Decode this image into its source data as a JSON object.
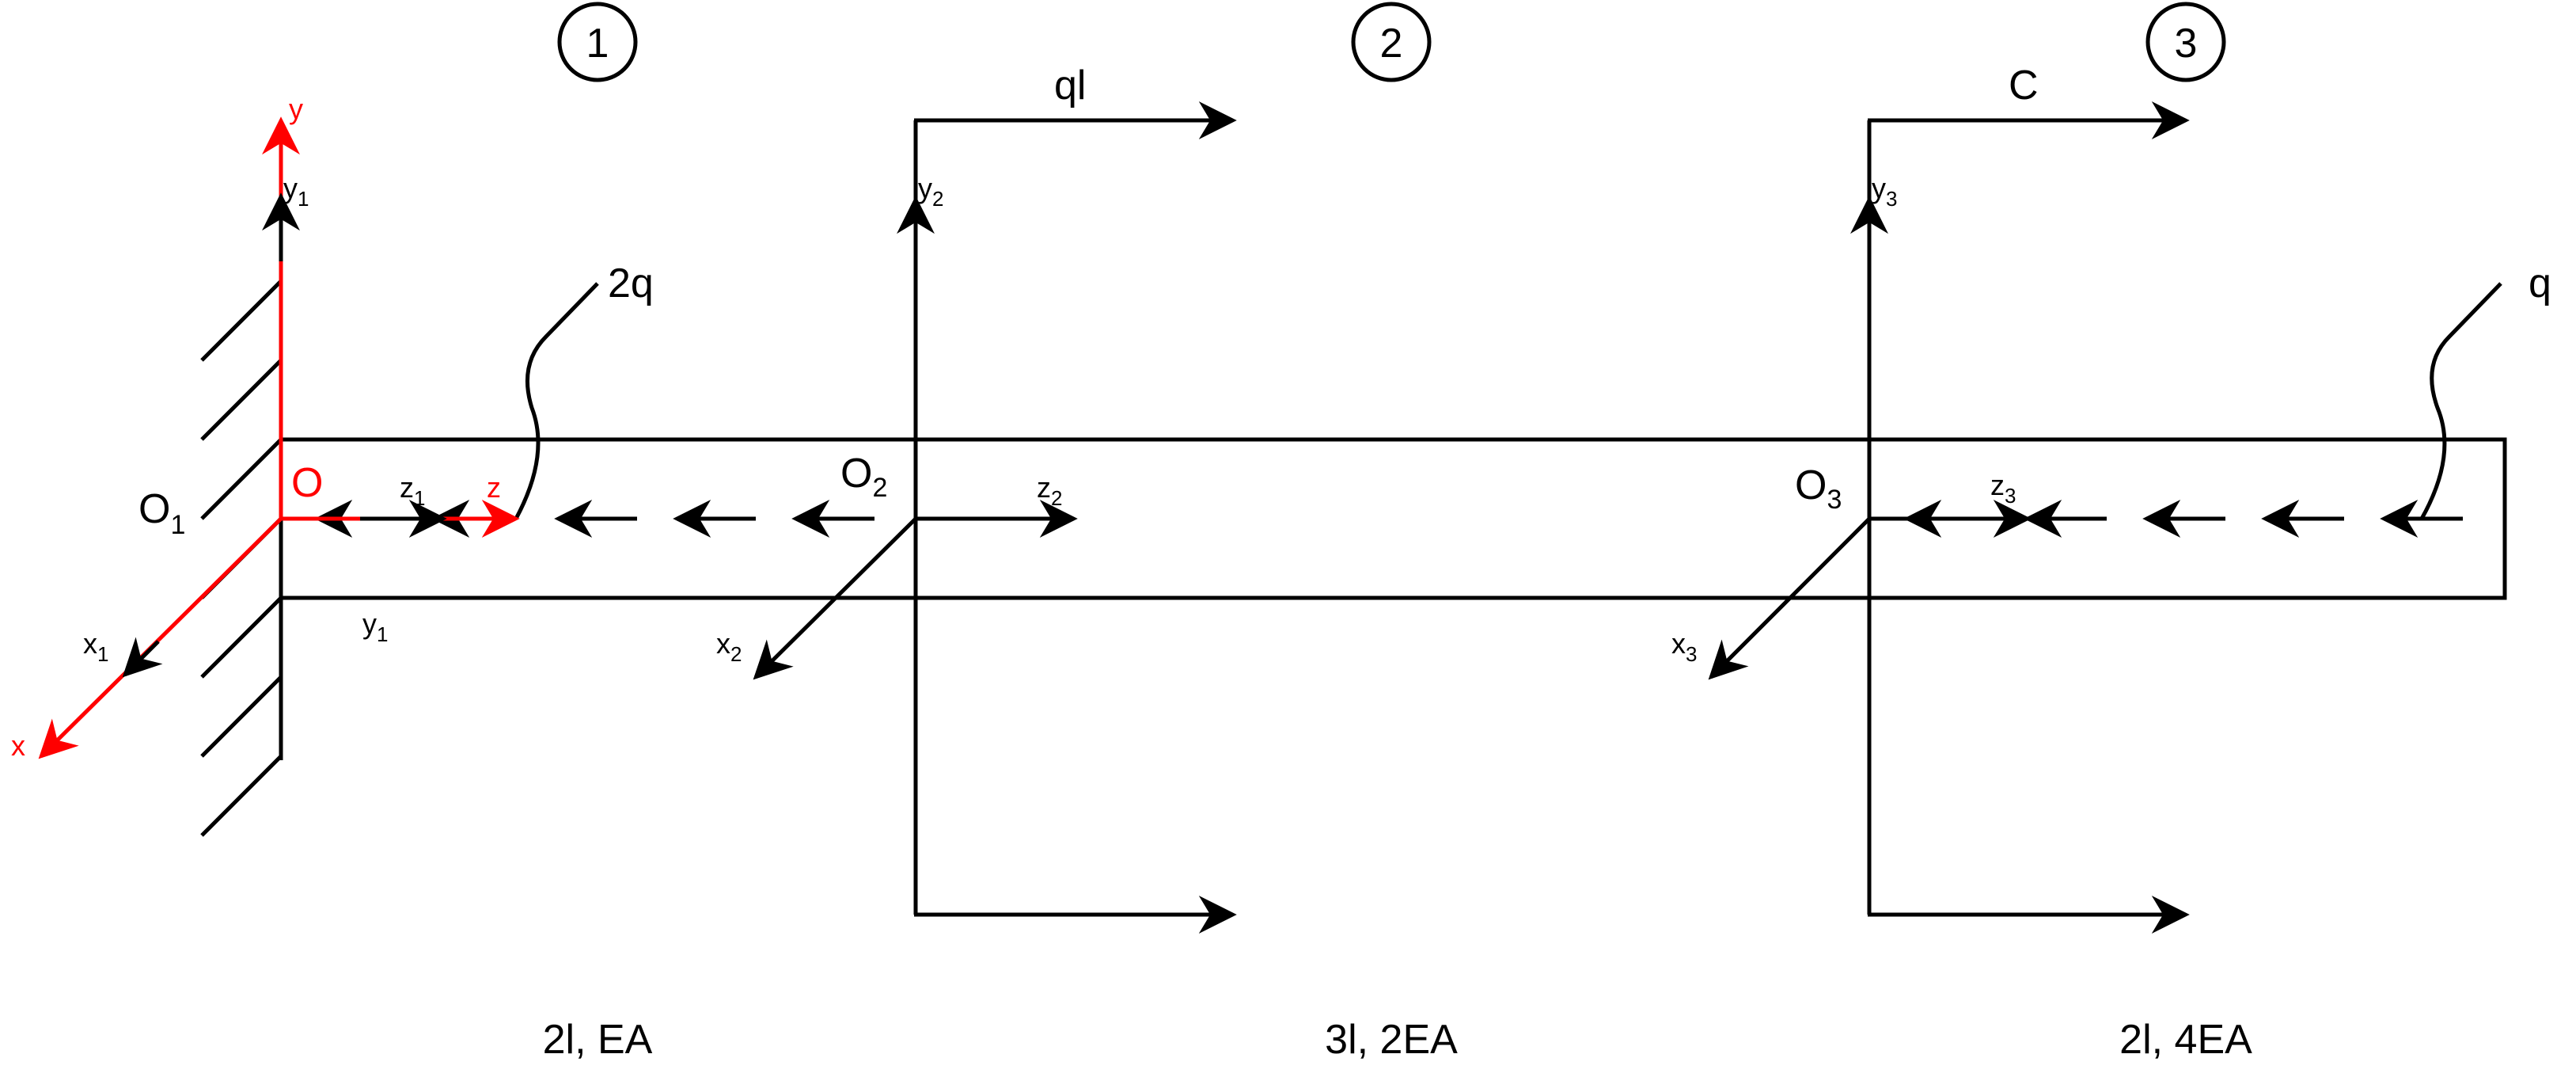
{
  "section_numbers": [
    "1",
    "2",
    "3"
  ],
  "loads": {
    "distributed_1": "2q",
    "concentrated_2": "ql",
    "concentrated_3": "C",
    "distributed_3": "q"
  },
  "segment_props": [
    "2l, EA",
    "3l, 2EA",
    "2l, 4EA"
  ],
  "global_axes": {
    "origin": "O",
    "x": "x",
    "y": "y",
    "z": "z"
  },
  "origins": {
    "o1": {
      "base": "O",
      "sub": "1"
    },
    "o2": {
      "base": "O",
      "sub": "2"
    },
    "o3": {
      "base": "O",
      "sub": "3"
    }
  },
  "local_axes": {
    "x1": {
      "base": "x",
      "sub": "1"
    },
    "y1_top": {
      "base": "y",
      "sub": "1"
    },
    "y1_bottom": {
      "base": "y",
      "sub": "1"
    },
    "z1": {
      "base": "z",
      "sub": "1"
    },
    "x2": {
      "base": "x",
      "sub": "2"
    },
    "y2": {
      "base": "y",
      "sub": "2"
    },
    "z2": {
      "base": "z",
      "sub": "2"
    },
    "x3": {
      "base": "x",
      "sub": "3"
    },
    "y3": {
      "base": "y",
      "sub": "3"
    },
    "z3": {
      "base": "z",
      "sub": "3"
    }
  },
  "colors": {
    "ink": "#000000",
    "global_axes": "#ff0000",
    "background": "#ffffff"
  }
}
